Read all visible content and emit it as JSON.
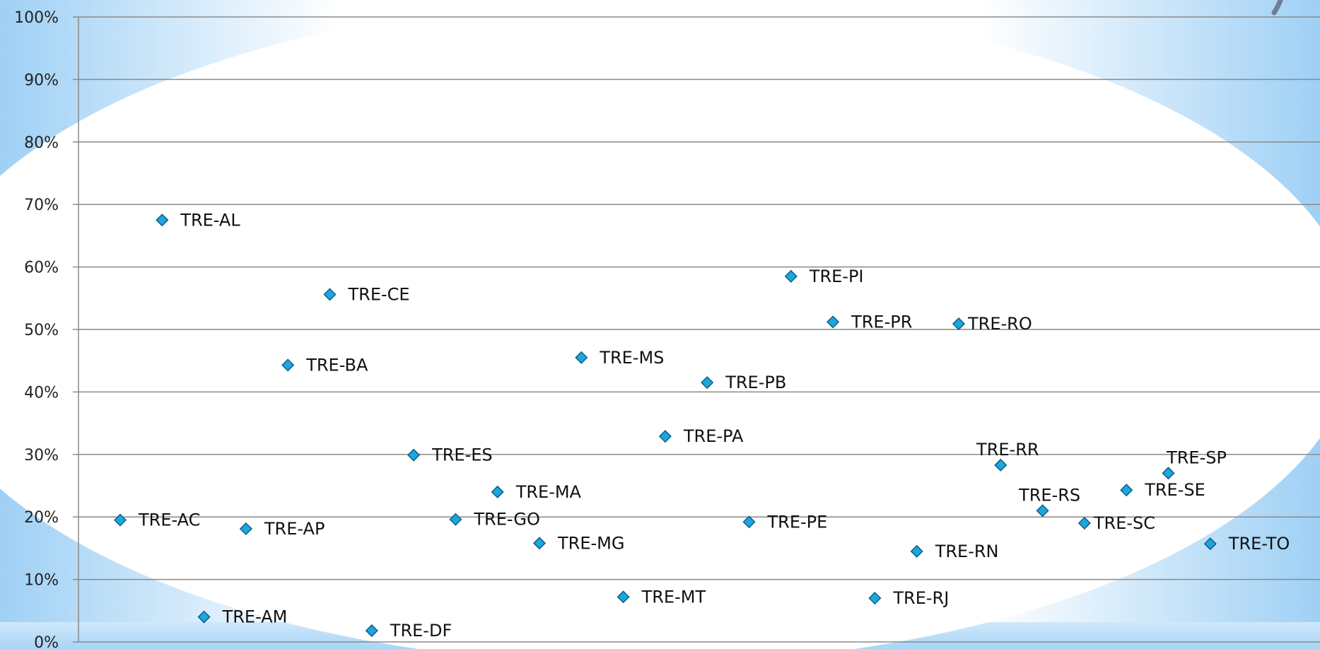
{
  "chart_data": {
    "type": "scatter",
    "title": "",
    "xlabel": "",
    "ylabel": "",
    "ylim": [
      0,
      1
    ],
    "y_ticks": [
      "0%",
      "10%",
      "20%",
      "30%",
      "40%",
      "50%",
      "60%",
      "70%",
      "80%",
      "90%",
      "100%"
    ],
    "grid": true,
    "marker_color": "#1ea5de",
    "series": [
      {
        "points": [
          {
            "x": 1,
            "y": 0.195,
            "label": "TRE-AC"
          },
          {
            "x": 2,
            "y": 0.675,
            "label": "TRE-AL"
          },
          {
            "x": 3,
            "y": 0.04,
            "label": "TRE-AM"
          },
          {
            "x": 4,
            "y": 0.181,
            "label": "TRE-AP"
          },
          {
            "x": 5,
            "y": 0.443,
            "label": "TRE-BA"
          },
          {
            "x": 6,
            "y": 0.556,
            "label": "TRE-CE"
          },
          {
            "x": 7,
            "y": 0.018,
            "label": "TRE-DF"
          },
          {
            "x": 8,
            "y": 0.299,
            "label": "TRE-ES"
          },
          {
            "x": 9,
            "y": 0.196,
            "label": "TRE-GO"
          },
          {
            "x": 10,
            "y": 0.24,
            "label": "TRE-MA"
          },
          {
            "x": 11,
            "y": 0.158,
            "label": "TRE-MG"
          },
          {
            "x": 12,
            "y": 0.455,
            "label": "TRE-MS"
          },
          {
            "x": 13,
            "y": 0.072,
            "label": "TRE-MT"
          },
          {
            "x": 14,
            "y": 0.329,
            "label": "TRE-PA"
          },
          {
            "x": 15,
            "y": 0.415,
            "label": "TRE-PB"
          },
          {
            "x": 16,
            "y": 0.192,
            "label": "TRE-PE"
          },
          {
            "x": 17,
            "y": 0.585,
            "label": "TRE-PI"
          },
          {
            "x": 18,
            "y": 0.512,
            "label": "TRE-PR"
          },
          {
            "x": 19,
            "y": 0.07,
            "label": "TRE-RJ"
          },
          {
            "x": 20,
            "y": 0.145,
            "label": "TRE-RN"
          },
          {
            "x": 21,
            "y": 0.509,
            "label": "TRE-RO"
          },
          {
            "x": 22,
            "y": 0.283,
            "label": "TRE-RR"
          },
          {
            "x": 23,
            "y": 0.21,
            "label": "TRE-RS"
          },
          {
            "x": 24,
            "y": 0.19,
            "label": "TRE-SC"
          },
          {
            "x": 25,
            "y": 0.243,
            "label": "TRE-SE"
          },
          {
            "x": 26,
            "y": 0.27,
            "label": "TRE-SP"
          },
          {
            "x": 27,
            "y": 0.157,
            "label": "TRE-TO"
          }
        ]
      }
    ]
  }
}
